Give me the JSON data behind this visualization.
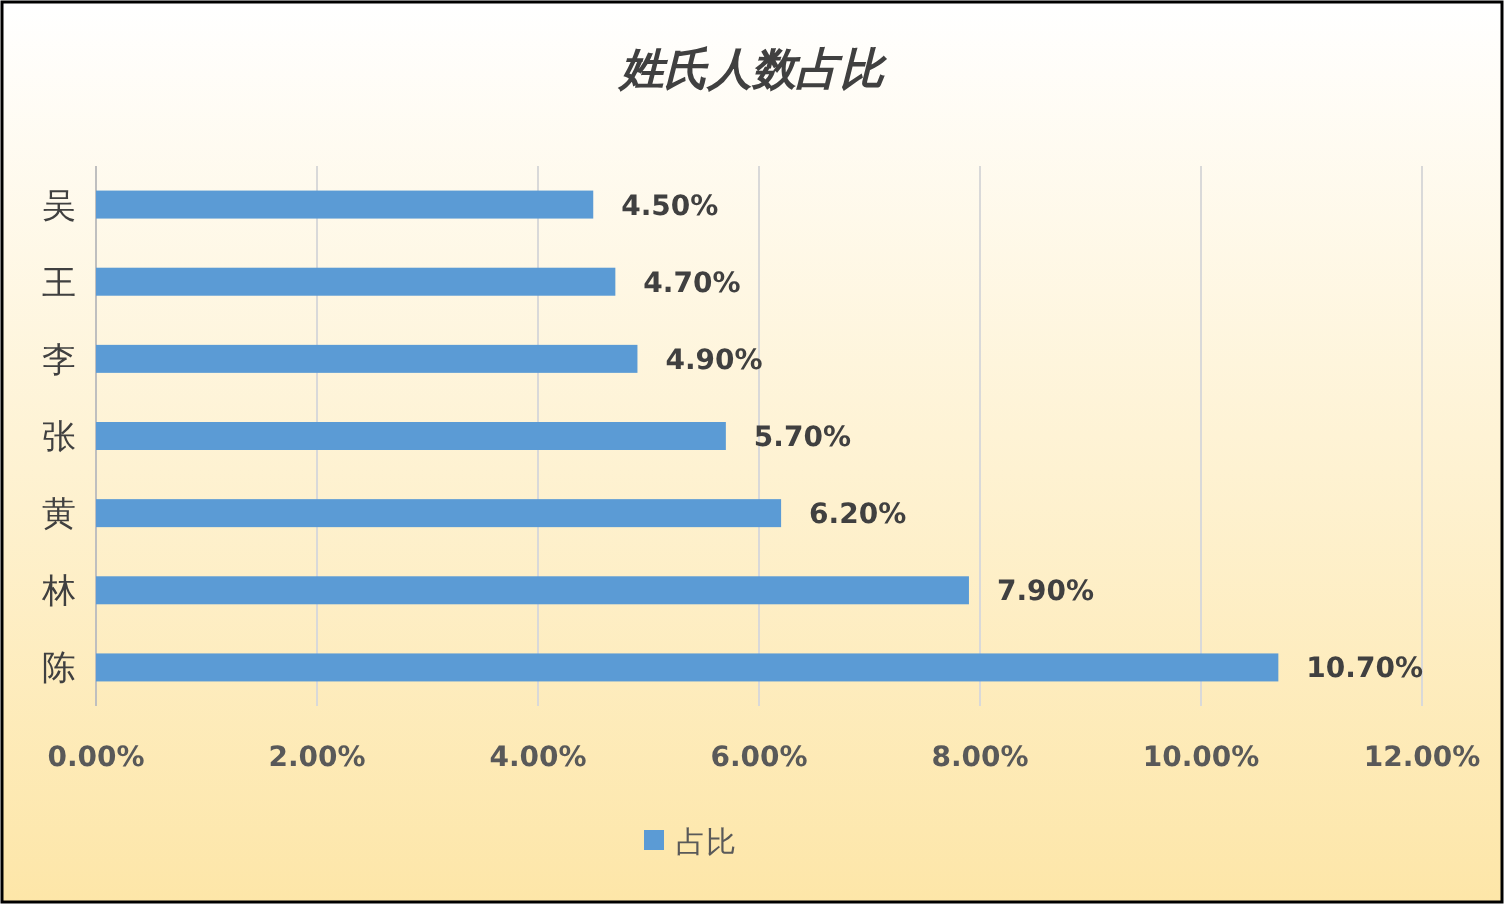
{
  "chart_data": {
    "type": "bar",
    "orientation": "horizontal",
    "title": "姓氏人数占比",
    "categories": [
      "吴",
      "王",
      "李",
      "张",
      "黄",
      "林",
      "陈"
    ],
    "series": [
      {
        "name": "占比",
        "color": "#5b9bd5",
        "values": [
          4.5,
          4.7,
          4.9,
          5.7,
          6.2,
          7.9,
          10.7
        ],
        "value_labels": [
          "4.50%",
          "4.70%",
          "4.90%",
          "5.70%",
          "6.20%",
          "7.90%",
          "10.70%"
        ]
      }
    ],
    "xlim": [
      0,
      12
    ],
    "xticks": [
      {
        "value": 0,
        "label": "0.00%"
      },
      {
        "value": 2,
        "label": "2.00%"
      },
      {
        "value": 4,
        "label": "4.00%"
      },
      {
        "value": 6,
        "label": "6.00%"
      },
      {
        "value": 8,
        "label": "8.00%"
      },
      {
        "value": 10,
        "label": "10.00%"
      },
      {
        "value": 12,
        "label": "12.00%"
      }
    ],
    "grid": "x",
    "legend": "bottom"
  }
}
